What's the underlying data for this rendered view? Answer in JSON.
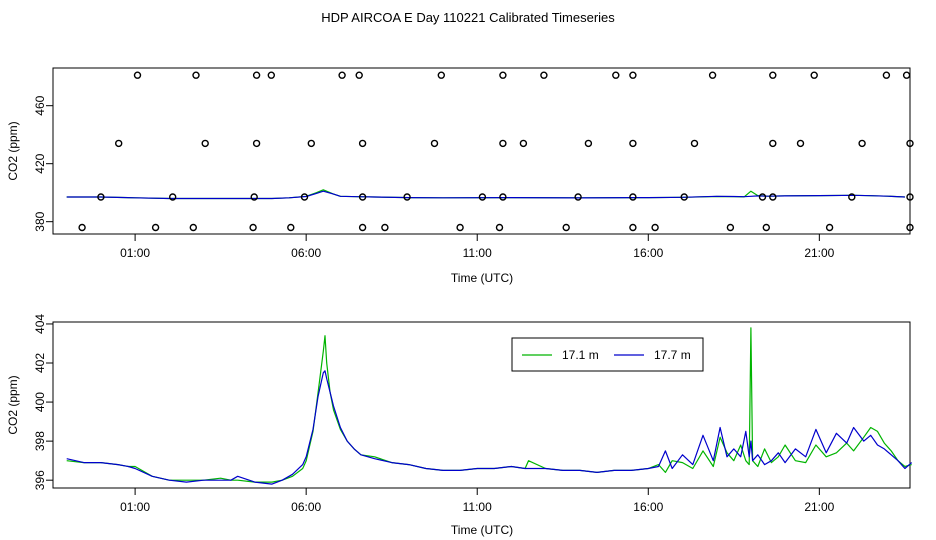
{
  "title": "HDP AIRCOA E  Day 110221  Calibrated Timeseries",
  "colors": {
    "green": "#00b400",
    "blue": "#0000cc"
  },
  "chart_data": [
    {
      "type": "scatter+line",
      "ylabel": "CO2 (ppm)",
      "xlabel": "Time (UTC)",
      "xlim": [
        -1.4,
        23.65
      ],
      "ylim": [
        371.5,
        486
      ],
      "x_ticks": [
        {
          "v": 1,
          "label": "01:00"
        },
        {
          "v": 6,
          "label": "06:00"
        },
        {
          "v": 11,
          "label": "11:00"
        },
        {
          "v": 16,
          "label": "16:00"
        },
        {
          "v": 21,
          "label": "21:00"
        }
      ],
      "y_ticks": [
        {
          "v": 380,
          "label": "380"
        },
        {
          "v": 420,
          "label": "420"
        },
        {
          "v": 460,
          "label": "460"
        }
      ],
      "points": [
        [
          1.07,
          481
        ],
        [
          2.78,
          481
        ],
        [
          4.55,
          481
        ],
        [
          4.98,
          481
        ],
        [
          7.05,
          481
        ],
        [
          7.55,
          481
        ],
        [
          9.95,
          481
        ],
        [
          11.75,
          481
        ],
        [
          12.95,
          481
        ],
        [
          15.05,
          481
        ],
        [
          15.55,
          481
        ],
        [
          17.88,
          481
        ],
        [
          19.64,
          481
        ],
        [
          20.85,
          481
        ],
        [
          22.96,
          481
        ],
        [
          23.55,
          481
        ],
        [
          0.52,
          434
        ],
        [
          3.05,
          434
        ],
        [
          4.55,
          434
        ],
        [
          6.15,
          434
        ],
        [
          7.65,
          434
        ],
        [
          9.75,
          434
        ],
        [
          11.75,
          434
        ],
        [
          12.35,
          434
        ],
        [
          14.25,
          434
        ],
        [
          15.55,
          434
        ],
        [
          17.35,
          434
        ],
        [
          19.64,
          434
        ],
        [
          20.45,
          434
        ],
        [
          22.25,
          434
        ],
        [
          23.65,
          434
        ],
        [
          0.0,
          397
        ],
        [
          2.1,
          397
        ],
        [
          4.48,
          397
        ],
        [
          5.95,
          397
        ],
        [
          7.65,
          397
        ],
        [
          8.95,
          397
        ],
        [
          11.15,
          397
        ],
        [
          11.75,
          397
        ],
        [
          13.95,
          397
        ],
        [
          15.55,
          397
        ],
        [
          17.05,
          397
        ],
        [
          19.34,
          397
        ],
        [
          19.64,
          397
        ],
        [
          21.95,
          397
        ],
        [
          23.65,
          397
        ],
        [
          -0.55,
          376
        ],
        [
          1.6,
          376
        ],
        [
          2.7,
          376
        ],
        [
          4.45,
          376
        ],
        [
          5.55,
          376
        ],
        [
          7.65,
          376
        ],
        [
          8.3,
          376
        ],
        [
          10.5,
          376
        ],
        [
          11.65,
          376
        ],
        [
          13.6,
          376
        ],
        [
          15.55,
          376
        ],
        [
          16.2,
          376
        ],
        [
          18.4,
          376
        ],
        [
          19.45,
          376
        ],
        [
          21.3,
          376
        ],
        [
          23.65,
          376
        ]
      ],
      "series": [
        {
          "color_key": "green",
          "x": [
            -1.0,
            0.0,
            1.0,
            2.0,
            3.0,
            4.0,
            5.0,
            5.5,
            6.0,
            6.3,
            6.5,
            6.8,
            7.0,
            7.5,
            8.0,
            9.0,
            10.0,
            12.0,
            14.0,
            16.0,
            17.0,
            18.0,
            18.5,
            18.8,
            19.0,
            19.2,
            19.5,
            20.0,
            21.0,
            22.0,
            22.5,
            23.0,
            23.5
          ],
          "y": [
            397.0,
            397.0,
            396.5,
            396.0,
            396.0,
            396.0,
            396.0,
            396.5,
            397.5,
            400.0,
            402.0,
            399.0,
            397.5,
            397.2,
            397.0,
            396.6,
            396.5,
            396.6,
            396.4,
            396.6,
            396.8,
            397.4,
            397.3,
            397.1,
            401.0,
            398.0,
            397.6,
            397.8,
            398.0,
            398.2,
            397.9,
            397.6,
            397.0
          ]
        },
        {
          "color_key": "blue",
          "x": [
            -1.0,
            0.0,
            1.0,
            2.0,
            3.0,
            4.0,
            5.0,
            5.5,
            6.0,
            6.3,
            6.5,
            6.8,
            7.0,
            7.5,
            8.0,
            9.0,
            10.0,
            12.0,
            14.0,
            16.0,
            17.0,
            18.0,
            18.5,
            18.8,
            19.0,
            19.2,
            19.5,
            20.0,
            21.0,
            22.0,
            22.5,
            23.0,
            23.5
          ],
          "y": [
            397.0,
            397.0,
            396.5,
            396.0,
            396.0,
            396.0,
            396.0,
            396.5,
            397.4,
            399.5,
            401.0,
            399.0,
            397.5,
            397.2,
            397.0,
            396.6,
            396.5,
            396.6,
            396.4,
            396.6,
            396.8,
            397.5,
            397.4,
            397.2,
            397.5,
            397.8,
            397.6,
            397.8,
            398.0,
            398.2,
            397.9,
            397.6,
            397.0
          ]
        }
      ]
    },
    {
      "type": "line",
      "ylabel": "CO2 (ppm)",
      "xlabel": "Time (UTC)",
      "xlim": [
        -1.4,
        23.65
      ],
      "ylim": [
        395.6,
        404.1
      ],
      "x_ticks": [
        {
          "v": 1,
          "label": "01:00"
        },
        {
          "v": 6,
          "label": "06:00"
        },
        {
          "v": 11,
          "label": "11:00"
        },
        {
          "v": 16,
          "label": "16:00"
        },
        {
          "v": 21,
          "label": "21:00"
        }
      ],
      "y_ticks": [
        {
          "v": 396,
          "label": "396"
        },
        {
          "v": 398,
          "label": "398"
        },
        {
          "v": 400,
          "label": "400"
        },
        {
          "v": 402,
          "label": "402"
        },
        {
          "v": 404,
          "label": "404"
        }
      ],
      "legend": {
        "position": "top-right",
        "entries": [
          {
            "label": "17.1 m",
            "color_key": "green"
          },
          {
            "label": "17.7 m",
            "color_key": "blue"
          }
        ]
      },
      "series": [
        {
          "name": "17.1 m",
          "color_key": "green",
          "x": [
            -1.0,
            -0.5,
            0.0,
            0.5,
            0.8,
            1.0,
            1.5,
            2.0,
            2.5,
            3.0,
            3.5,
            3.8,
            4.0,
            4.5,
            5.0,
            5.3,
            5.6,
            5.9,
            6.0,
            6.2,
            6.35,
            6.5,
            6.55,
            6.6,
            6.7,
            6.8,
            7.0,
            7.2,
            7.4,
            7.6,
            8.0,
            8.5,
            9.0,
            9.5,
            10.0,
            10.5,
            11.0,
            11.5,
            12.0,
            12.4,
            12.5,
            13.0,
            13.5,
            14.0,
            14.5,
            15.0,
            15.5,
            16.0,
            16.3,
            16.5,
            16.7,
            17.0,
            17.3,
            17.6,
            17.9,
            18.1,
            18.3,
            18.5,
            18.7,
            18.85,
            18.95,
            19.0,
            19.05,
            19.2,
            19.4,
            19.6,
            19.8,
            20.0,
            20.3,
            20.6,
            20.9,
            21.2,
            21.5,
            21.8,
            22.0,
            22.3,
            22.5,
            22.7,
            22.9,
            23.1,
            23.3,
            23.5,
            23.7
          ],
          "y": [
            397.0,
            396.9,
            396.9,
            396.8,
            396.7,
            396.7,
            396.2,
            396.0,
            396.0,
            396.0,
            396.1,
            396.0,
            396.0,
            395.9,
            395.9,
            396.0,
            396.2,
            396.6,
            397.0,
            398.5,
            400.5,
            402.6,
            403.4,
            402.0,
            400.5,
            399.6,
            398.6,
            398.0,
            397.6,
            397.3,
            397.2,
            396.9,
            396.8,
            396.6,
            396.5,
            396.5,
            396.6,
            396.6,
            396.7,
            396.6,
            397.0,
            396.6,
            396.5,
            396.5,
            396.4,
            396.5,
            396.5,
            396.6,
            396.8,
            396.4,
            397.0,
            396.9,
            396.6,
            397.5,
            396.7,
            398.2,
            397.4,
            397.0,
            397.8,
            397.0,
            396.8,
            403.8,
            397.0,
            396.7,
            397.6,
            396.9,
            397.2,
            397.8,
            397.0,
            396.9,
            397.8,
            397.2,
            397.4,
            397.9,
            397.5,
            398.2,
            398.7,
            398.5,
            397.9,
            397.5,
            397.0,
            396.7,
            396.8
          ]
        },
        {
          "name": "17.7 m",
          "color_key": "blue",
          "x": [
            -1.0,
            -0.5,
            0.0,
            0.5,
            0.8,
            1.0,
            1.5,
            2.0,
            2.5,
            3.0,
            3.5,
            3.8,
            4.0,
            4.5,
            5.0,
            5.3,
            5.6,
            5.9,
            6.0,
            6.2,
            6.35,
            6.5,
            6.55,
            6.6,
            6.7,
            6.8,
            7.0,
            7.2,
            7.4,
            7.6,
            8.0,
            8.5,
            9.0,
            9.5,
            10.0,
            10.5,
            11.0,
            11.5,
            12.0,
            12.4,
            12.5,
            13.0,
            13.5,
            14.0,
            14.5,
            15.0,
            15.5,
            16.0,
            16.3,
            16.5,
            16.7,
            17.0,
            17.3,
            17.6,
            17.9,
            18.1,
            18.3,
            18.5,
            18.7,
            18.85,
            18.95,
            19.0,
            19.05,
            19.2,
            19.4,
            19.6,
            19.8,
            20.0,
            20.3,
            20.6,
            20.9,
            21.2,
            21.5,
            21.8,
            22.0,
            22.3,
            22.5,
            22.7,
            22.9,
            23.1,
            23.3,
            23.5,
            23.7
          ],
          "y": [
            397.1,
            396.9,
            396.9,
            396.8,
            396.7,
            396.6,
            396.2,
            396.0,
            395.9,
            396.0,
            396.0,
            396.0,
            396.2,
            395.9,
            395.8,
            396.0,
            396.3,
            396.8,
            397.2,
            398.6,
            400.3,
            401.5,
            401.6,
            401.2,
            400.5,
            399.8,
            398.7,
            398.0,
            397.6,
            397.3,
            397.1,
            396.9,
            396.8,
            396.6,
            396.5,
            396.5,
            396.6,
            396.6,
            396.7,
            396.6,
            396.6,
            396.6,
            396.5,
            396.5,
            396.4,
            396.5,
            396.5,
            396.6,
            396.7,
            397.5,
            396.6,
            397.3,
            396.8,
            398.3,
            397.0,
            398.7,
            397.2,
            397.6,
            397.2,
            398.5,
            397.2,
            398.0,
            397.0,
            397.3,
            396.8,
            397.0,
            397.4,
            396.9,
            397.6,
            397.2,
            398.6,
            397.4,
            398.4,
            397.9,
            398.7,
            398.0,
            398.3,
            397.8,
            397.6,
            397.3,
            397.0,
            396.6,
            396.9
          ]
        }
      ]
    }
  ]
}
